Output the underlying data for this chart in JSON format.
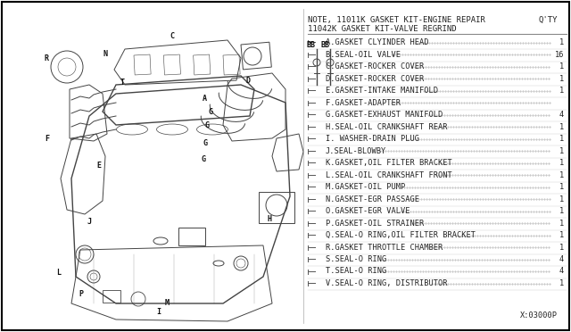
{
  "background_color": "#ffffff",
  "border_color": "#000000",
  "title_note": "NOTE, 11011K GASKET KIT-ENGINE REPAIR",
  "title_note2": "11042K GASKET KIT-VALVE REGRIND",
  "qty_header": "Q'TY",
  "diagram_code": "X:03000P",
  "parts": [
    {
      "label": "A",
      "desc": "A.GASKET CLYINDER HEAD",
      "qty": "1"
    },
    {
      "label": "B",
      "desc": "B.SEAL-OIL VALVE",
      "qty": "16"
    },
    {
      "label": "C",
      "desc": "C.GASKET-ROCKER COVER",
      "qty": "1"
    },
    {
      "label": "D",
      "desc": "D.GASKET-ROCKER COVER",
      "qty": "1"
    },
    {
      "label": "E",
      "desc": "E.GASKET-INTAKE MANIFOLD",
      "qty": "1"
    },
    {
      "label": "F",
      "desc": "F.GASKET-ADAPTER",
      "qty": ""
    },
    {
      "label": "G",
      "desc": "G.GASKET-EXHAUST MANIFOLD",
      "qty": "4"
    },
    {
      "label": "H",
      "desc": "H.SEAL-OIL CRANKSHAFT REAR",
      "qty": "1"
    },
    {
      "label": "I",
      "desc": "I. WASHER-DRAIN PLUG",
      "qty": "1"
    },
    {
      "label": "J",
      "desc": "J.SEAL-BLOWBY",
      "qty": "1"
    },
    {
      "label": "K",
      "desc": "K.GASKET,OIL FILTER BRACKET",
      "qty": "1"
    },
    {
      "label": "L",
      "desc": "L.SEAL-OIL CRANKSHAFT FRONT",
      "qty": "1"
    },
    {
      "label": "M",
      "desc": "M.GASKET-OIL PUMP",
      "qty": "1"
    },
    {
      "label": "N",
      "desc": "N.GASKET-EGR PASSAGE",
      "qty": "1"
    },
    {
      "label": "O",
      "desc": "O.GASKET-EGR VALVE",
      "qty": "1"
    },
    {
      "label": "P",
      "desc": "P.GASKET-OIL STRAINER",
      "qty": "1"
    },
    {
      "label": "Q",
      "desc": "Q.SEAL-O RING,OIL FILTER BRACKET",
      "qty": "1"
    },
    {
      "label": "R",
      "desc": "R.GASKET THROTTLE CHAMBER",
      "qty": "1"
    },
    {
      "label": "S",
      "desc": "S.SEAL-O RING",
      "qty": "4"
    },
    {
      "label": "T",
      "desc": "T.SEAL-O RING",
      "qty": "4"
    },
    {
      "label": "V",
      "desc": "V.SEAL-O RING, DISTRIBUTOR",
      "qty": "1"
    }
  ],
  "line_color": "#888888",
  "text_color": "#222222",
  "dark_color": "#333333",
  "font_size": 6.2,
  "header_font_size": 7.0,
  "engine_color": "#444444"
}
